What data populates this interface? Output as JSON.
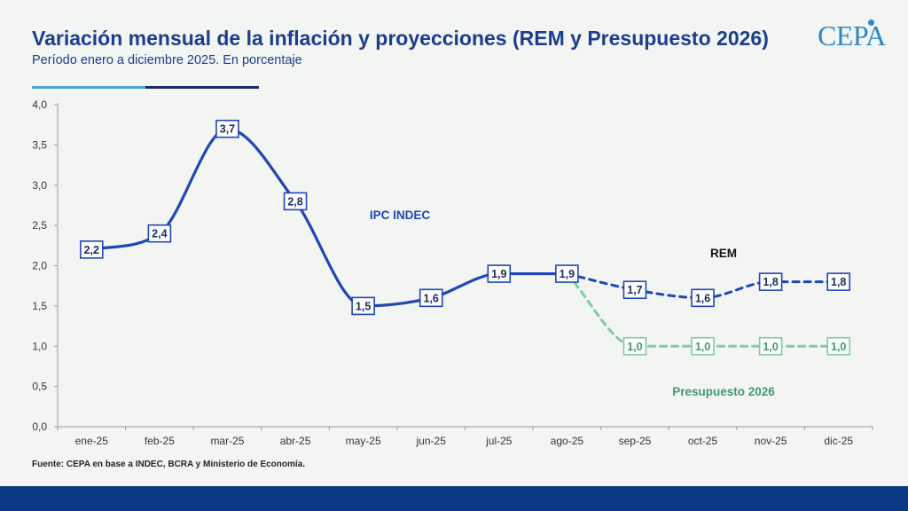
{
  "header": {
    "title": "Variación mensual de la inflación y proyecciones (REM y Presupuesto 2026)",
    "subtitle": "Período enero a diciembre 2025. En porcentaje",
    "logo": "CEPA"
  },
  "footer": {
    "source": "Fuente: CEPA en base a  INDEC, BCRA y Ministerio de Economía."
  },
  "colors": {
    "ipc": "#1e46b8",
    "rem": "#1e46b8",
    "presupuesto": "#7ecba4",
    "presupuesto_label": "#3f9a6e",
    "rem_label": "#111111",
    "axis_text": "#333333"
  },
  "chart_data": {
    "type": "line",
    "categories": [
      "ene-25",
      "feb-25",
      "mar-25",
      "abr-25",
      "may-25",
      "jun-25",
      "jul-25",
      "ago-25",
      "sep-25",
      "oct-25",
      "nov-25",
      "dic-25"
    ],
    "ylim": [
      0,
      4
    ],
    "yticks": [
      "0,0",
      "0,5",
      "1,0",
      "1,5",
      "2,0",
      "2,5",
      "3,0",
      "3,5",
      "4,0"
    ],
    "ytick_values": [
      0,
      0.5,
      1,
      1.5,
      2,
      2.5,
      3,
      3.5,
      4
    ],
    "grid": false,
    "series": [
      {
        "name": "IPC INDEC",
        "style": "solid",
        "color": "#1e46b8",
        "values": [
          2.2,
          2.4,
          3.7,
          2.8,
          1.5,
          1.6,
          1.9,
          1.9,
          null,
          null,
          null,
          null
        ],
        "labels": [
          "2,2",
          "2,4",
          "3,7",
          "2,8",
          "1,5",
          "1,6",
          "1,9",
          "1,9",
          null,
          null,
          null,
          null
        ]
      },
      {
        "name": "REM",
        "style": "dashed",
        "color": "#1e46b8",
        "values": [
          null,
          null,
          null,
          null,
          null,
          null,
          null,
          1.9,
          1.7,
          1.6,
          1.8,
          1.8
        ],
        "labels": [
          null,
          null,
          null,
          null,
          null,
          null,
          null,
          null,
          "1,7",
          "1,6",
          "1,8",
          "1,8"
        ]
      },
      {
        "name": "Presupuesto 2026",
        "style": "dashed",
        "color": "#7ecba4",
        "values": [
          null,
          null,
          null,
          null,
          null,
          null,
          null,
          1.9,
          1.0,
          1.0,
          1.0,
          1.0
        ],
        "labels": [
          null,
          null,
          null,
          null,
          null,
          null,
          null,
          null,
          "1,0",
          "1,0",
          "1,0",
          "1,0"
        ]
      }
    ],
    "annotations": [
      {
        "text": "IPC INDEC",
        "series": "IPC INDEC"
      },
      {
        "text": "REM",
        "series": "REM"
      },
      {
        "text": "Presupuesto 2026",
        "series": "Presupuesto 2026"
      }
    ]
  }
}
